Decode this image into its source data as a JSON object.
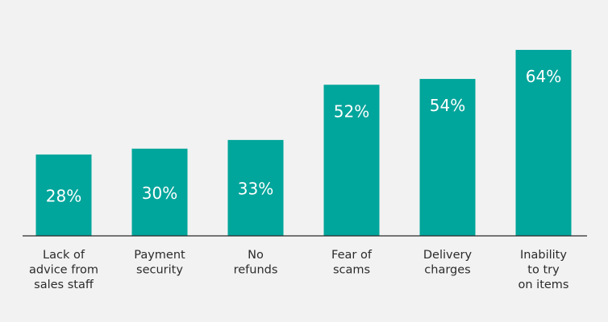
{
  "chart_data": {
    "type": "bar",
    "categories": [
      [
        "Lack of",
        "advice from",
        "sales staff"
      ],
      [
        "Payment",
        "security"
      ],
      [
        "No",
        "refunds"
      ],
      [
        "Fear of",
        "scams"
      ],
      [
        "Delivery",
        "charges"
      ],
      [
        "Inability",
        "to try",
        "on items"
      ]
    ],
    "values": [
      28,
      30,
      33,
      52,
      54,
      64
    ],
    "value_labels": [
      "28%",
      "30%",
      "33%",
      "52%",
      "54%",
      "64%"
    ],
    "bar_color": "#00a59b",
    "ylim": [
      0,
      100
    ],
    "grid": false,
    "legend": "none"
  }
}
